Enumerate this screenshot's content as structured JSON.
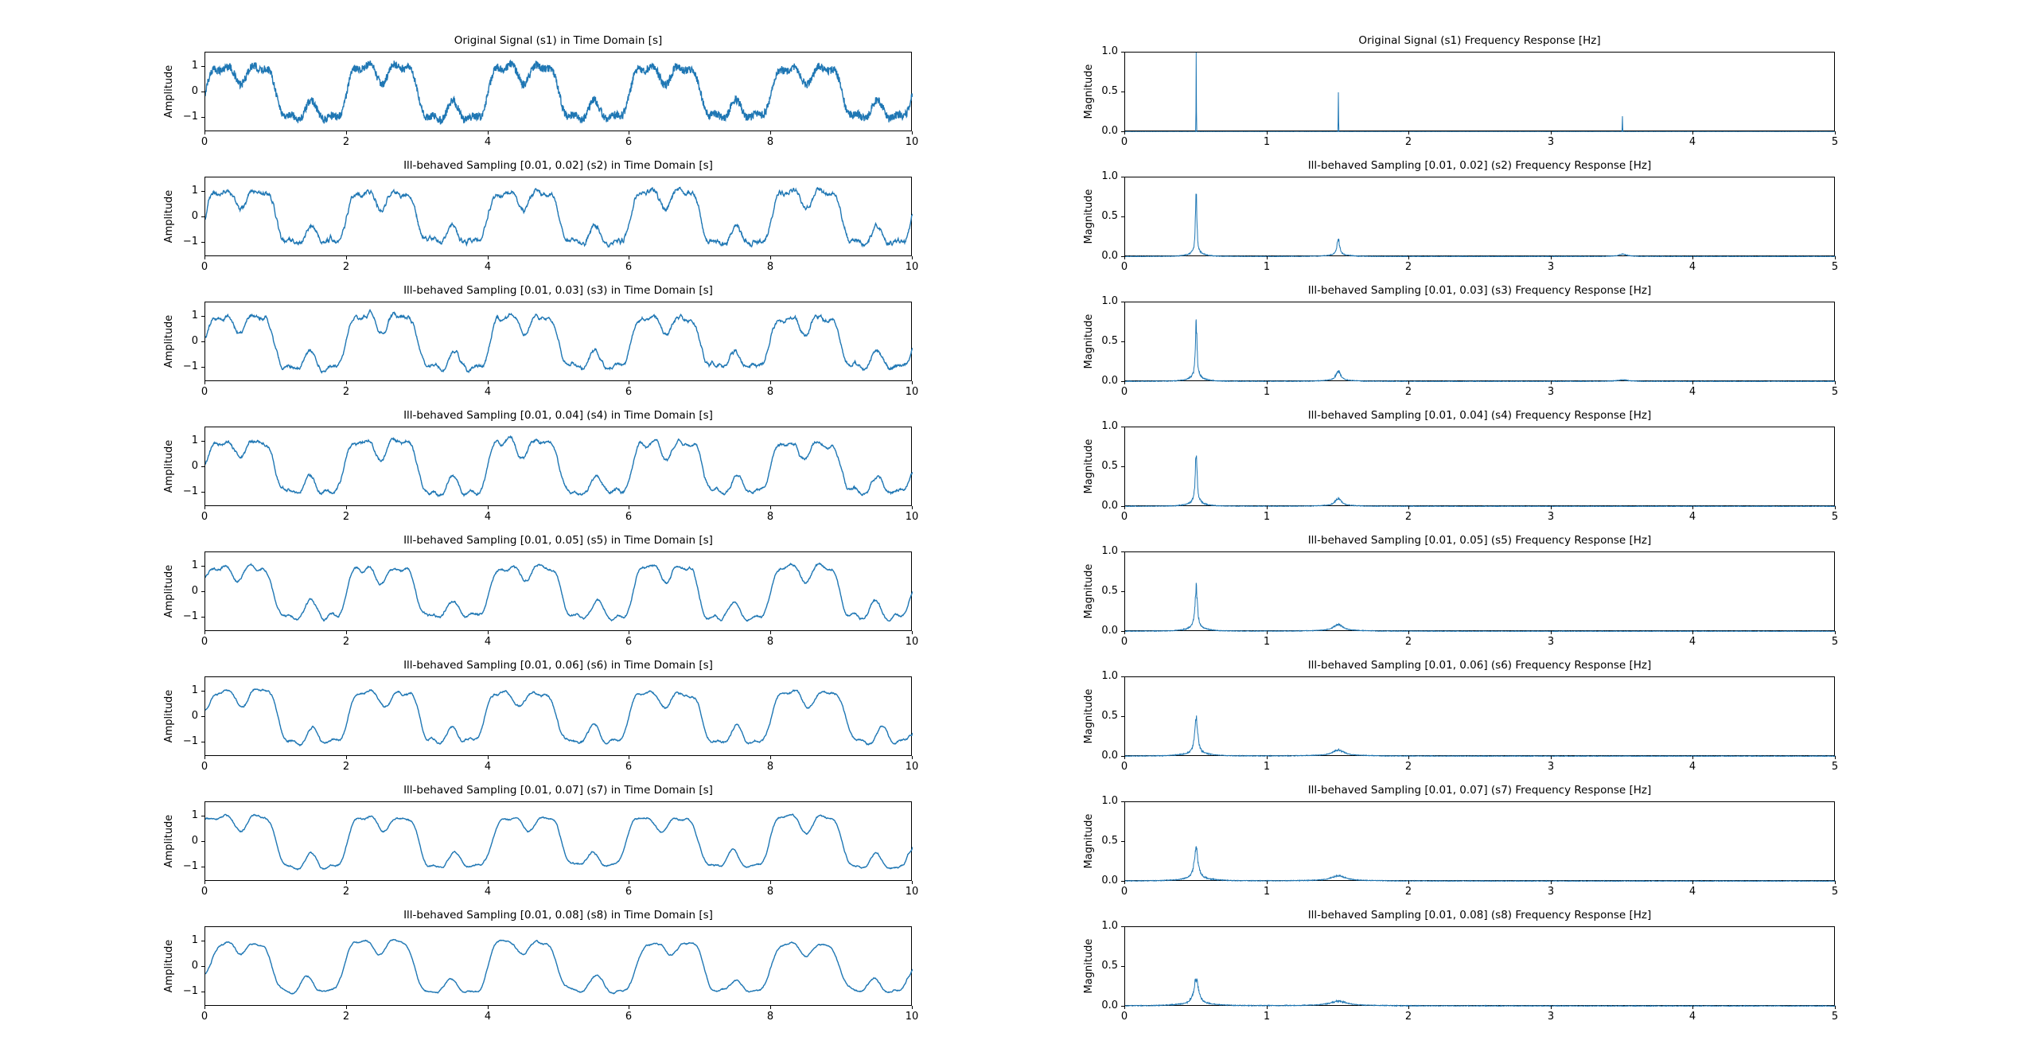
{
  "figure": {
    "background": "#ffffff",
    "line_color": "#1f77b4",
    "text_color": "#000000"
  },
  "chart_data": {
    "type": "line",
    "grid": "8 rows x 2 columns",
    "description": "Left column: signals in time domain; right column: corresponding FFT magnitude spectra",
    "signal_components": [
      {
        "freq_hz": 0.5,
        "amplitude": 1.0
      },
      {
        "freq_hz": 1.5,
        "amplitude": 0.5
      },
      {
        "freq_hz": 3.5,
        "amplitude": 0.2
      }
    ],
    "time_axis": {
      "xlim": [
        0,
        10
      ],
      "ylim": [
        -1.55,
        1.55
      ],
      "xticks": [
        "0",
        "2",
        "4",
        "6",
        "8",
        "10"
      ],
      "yticks": [
        "1",
        "0",
        "−1"
      ],
      "ylabel": "Amplitude"
    },
    "freq_axis": {
      "xlim": [
        0,
        5
      ],
      "ylim": [
        0,
        1
      ],
      "xticks": [
        "0",
        "1",
        "2",
        "3",
        "4",
        "5"
      ],
      "yticks": [
        "1.0",
        "0.5",
        "0.0"
      ],
      "ylabel": "Magnitude"
    },
    "rows": [
      {
        "id": "s1",
        "time_title": "Original Signal (s1) in Time Domain [s]",
        "freq_title": "Original Signal (s1) Frequency Response [Hz]",
        "fuzz": 0.14,
        "wiggle": 0.015,
        "smooth_window": 1,
        "time_warp": 0.0,
        "noise_floor": 0.004,
        "spectrum_peaks": [
          {
            "f": 0.5,
            "h": 1.0,
            "w": 0.002
          },
          {
            "f": 1.5,
            "h": 0.5,
            "w": 0.002
          },
          {
            "f": 3.5,
            "h": 0.2,
            "w": 0.002
          }
        ]
      },
      {
        "id": "s2",
        "time_title": "Ill-behaved Sampling [0.01, 0.02] (s2) in Time Domain [s]",
        "freq_title": "Ill-behaved Sampling [0.01, 0.02] (s2) Frequency Response [Hz]",
        "fuzz": 0.0,
        "wiggle": 0.05,
        "smooth_window": 5,
        "time_warp": 0.01,
        "noise_floor": 0.01,
        "spectrum_peaks": [
          {
            "f": 0.5,
            "h": 0.78,
            "w": 0.006
          },
          {
            "f": 1.5,
            "h": 0.21,
            "w": 0.012
          },
          {
            "f": 3.5,
            "h": 0.03,
            "w": 0.03
          }
        ]
      },
      {
        "id": "s3",
        "time_title": "Ill-behaved Sampling [0.01, 0.03] (s3) in Time Domain [s]",
        "freq_title": "Ill-behaved Sampling [0.01, 0.03] (s3) Frequency Response [Hz]",
        "fuzz": 0.0,
        "wiggle": 0.05,
        "smooth_window": 9,
        "time_warp": 0.018,
        "noise_floor": 0.011,
        "spectrum_peaks": [
          {
            "f": 0.5,
            "h": 0.75,
            "w": 0.007
          },
          {
            "f": 1.5,
            "h": 0.13,
            "w": 0.02
          },
          {
            "f": 3.5,
            "h": 0.02,
            "w": 0.04
          }
        ]
      },
      {
        "id": "s4",
        "time_title": "Ill-behaved Sampling [0.01, 0.04] (s4) in Time Domain [s]",
        "freq_title": "Ill-behaved Sampling [0.01, 0.04] (s4) Frequency Response [Hz]",
        "fuzz": 0.0,
        "wiggle": 0.05,
        "smooth_window": 13,
        "time_warp": 0.026,
        "noise_floor": 0.011,
        "spectrum_peaks": [
          {
            "f": 0.5,
            "h": 0.64,
            "w": 0.008
          },
          {
            "f": 1.5,
            "h": 0.1,
            "w": 0.025
          }
        ]
      },
      {
        "id": "s5",
        "time_title": "Ill-behaved Sampling [0.01, 0.05] (s5) in Time Domain [s]",
        "freq_title": "Ill-behaved Sampling [0.01, 0.05] (s5) Frequency Response [Hz]",
        "fuzz": 0.0,
        "wiggle": 0.045,
        "smooth_window": 19,
        "time_warp": 0.032,
        "noise_floor": 0.011,
        "spectrum_peaks": [
          {
            "f": 0.5,
            "h": 0.54,
            "w": 0.01
          },
          {
            "f": 1.5,
            "h": 0.085,
            "w": 0.04
          }
        ]
      },
      {
        "id": "s6",
        "time_title": "Ill-behaved Sampling [0.01, 0.06] (s6) in Time Domain [s]",
        "freq_title": "Ill-behaved Sampling [0.01, 0.06] (s6) Frequency Response [Hz]",
        "fuzz": 0.0,
        "wiggle": 0.045,
        "smooth_window": 25,
        "time_warp": 0.038,
        "noise_floor": 0.012,
        "spectrum_peaks": [
          {
            "f": 0.5,
            "h": 0.46,
            "w": 0.013
          },
          {
            "f": 1.5,
            "h": 0.075,
            "w": 0.05
          }
        ]
      },
      {
        "id": "s7",
        "time_title": "Ill-behaved Sampling [0.01, 0.07] (s7) in Time Domain [s]",
        "freq_title": "Ill-behaved Sampling [0.01, 0.07] (s7) Frequency Response [Hz]",
        "fuzz": 0.0,
        "wiggle": 0.04,
        "smooth_window": 31,
        "time_warp": 0.045,
        "noise_floor": 0.012,
        "spectrum_peaks": [
          {
            "f": 0.5,
            "h": 0.4,
            "w": 0.016
          },
          {
            "f": 1.5,
            "h": 0.065,
            "w": 0.06
          }
        ]
      },
      {
        "id": "s8",
        "time_title": "Ill-behaved Sampling [0.01, 0.08] (s8) in Time Domain [s]",
        "freq_title": "Ill-behaved Sampling [0.01, 0.08] (s8) Frequency Response [Hz]",
        "fuzz": 0.0,
        "wiggle": 0.04,
        "smooth_window": 37,
        "time_warp": 0.055,
        "noise_floor": 0.013,
        "spectrum_peaks": [
          {
            "f": 0.5,
            "h": 0.33,
            "w": 0.02
          },
          {
            "f": 1.5,
            "h": 0.06,
            "w": 0.07
          }
        ]
      }
    ]
  }
}
